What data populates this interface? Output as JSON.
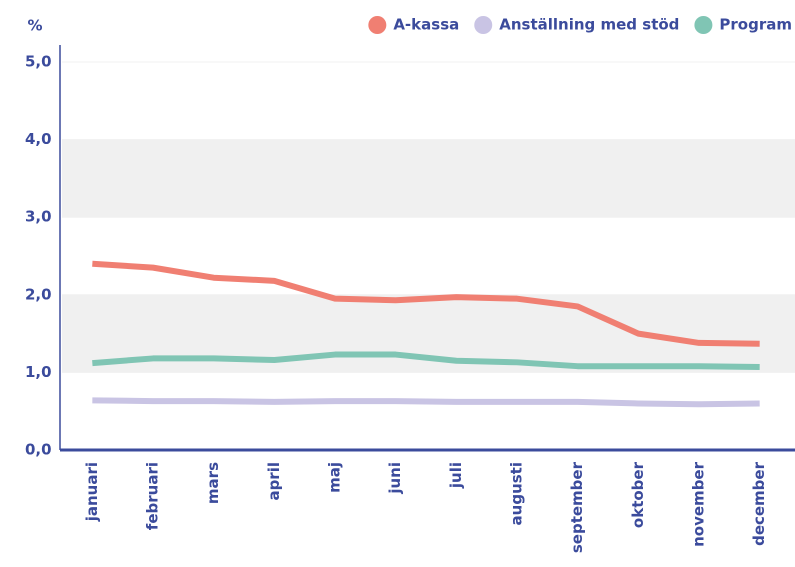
{
  "chart_data": {
    "type": "line",
    "y_label": "%",
    "categories": [
      "januari",
      "februari",
      "mars",
      "april",
      "maj",
      "juni",
      "juli",
      "augusti",
      "september",
      "oktober",
      "november",
      "december"
    ],
    "series": [
      {
        "name": "A-kassa",
        "color": "#f07f72",
        "values": [
          2.4,
          2.35,
          2.22,
          2.18,
          1.95,
          1.93,
          1.97,
          1.95,
          1.85,
          1.5,
          1.38,
          1.37
        ]
      },
      {
        "name": "Anställning med stöd",
        "color": "#c9c4e4",
        "values": [
          0.64,
          0.63,
          0.63,
          0.62,
          0.63,
          0.63,
          0.62,
          0.62,
          0.62,
          0.6,
          0.59,
          0.6
        ]
      },
      {
        "name": "Program",
        "color": "#80c5b4",
        "values": [
          1.12,
          1.18,
          1.18,
          1.16,
          1.23,
          1.23,
          1.15,
          1.13,
          1.08,
          1.08,
          1.08,
          1.07
        ]
      }
    ],
    "ylim": [
      0,
      5
    ],
    "yticks": [
      {
        "value": 0,
        "label": "0,0"
      },
      {
        "value": 1,
        "label": "1,0"
      },
      {
        "value": 2,
        "label": "2,0"
      },
      {
        "value": 3,
        "label": "3,0"
      },
      {
        "value": 4,
        "label": "4,0"
      },
      {
        "value": 5,
        "label": "5,0"
      }
    ],
    "legend": "top-right",
    "grid": true
  }
}
